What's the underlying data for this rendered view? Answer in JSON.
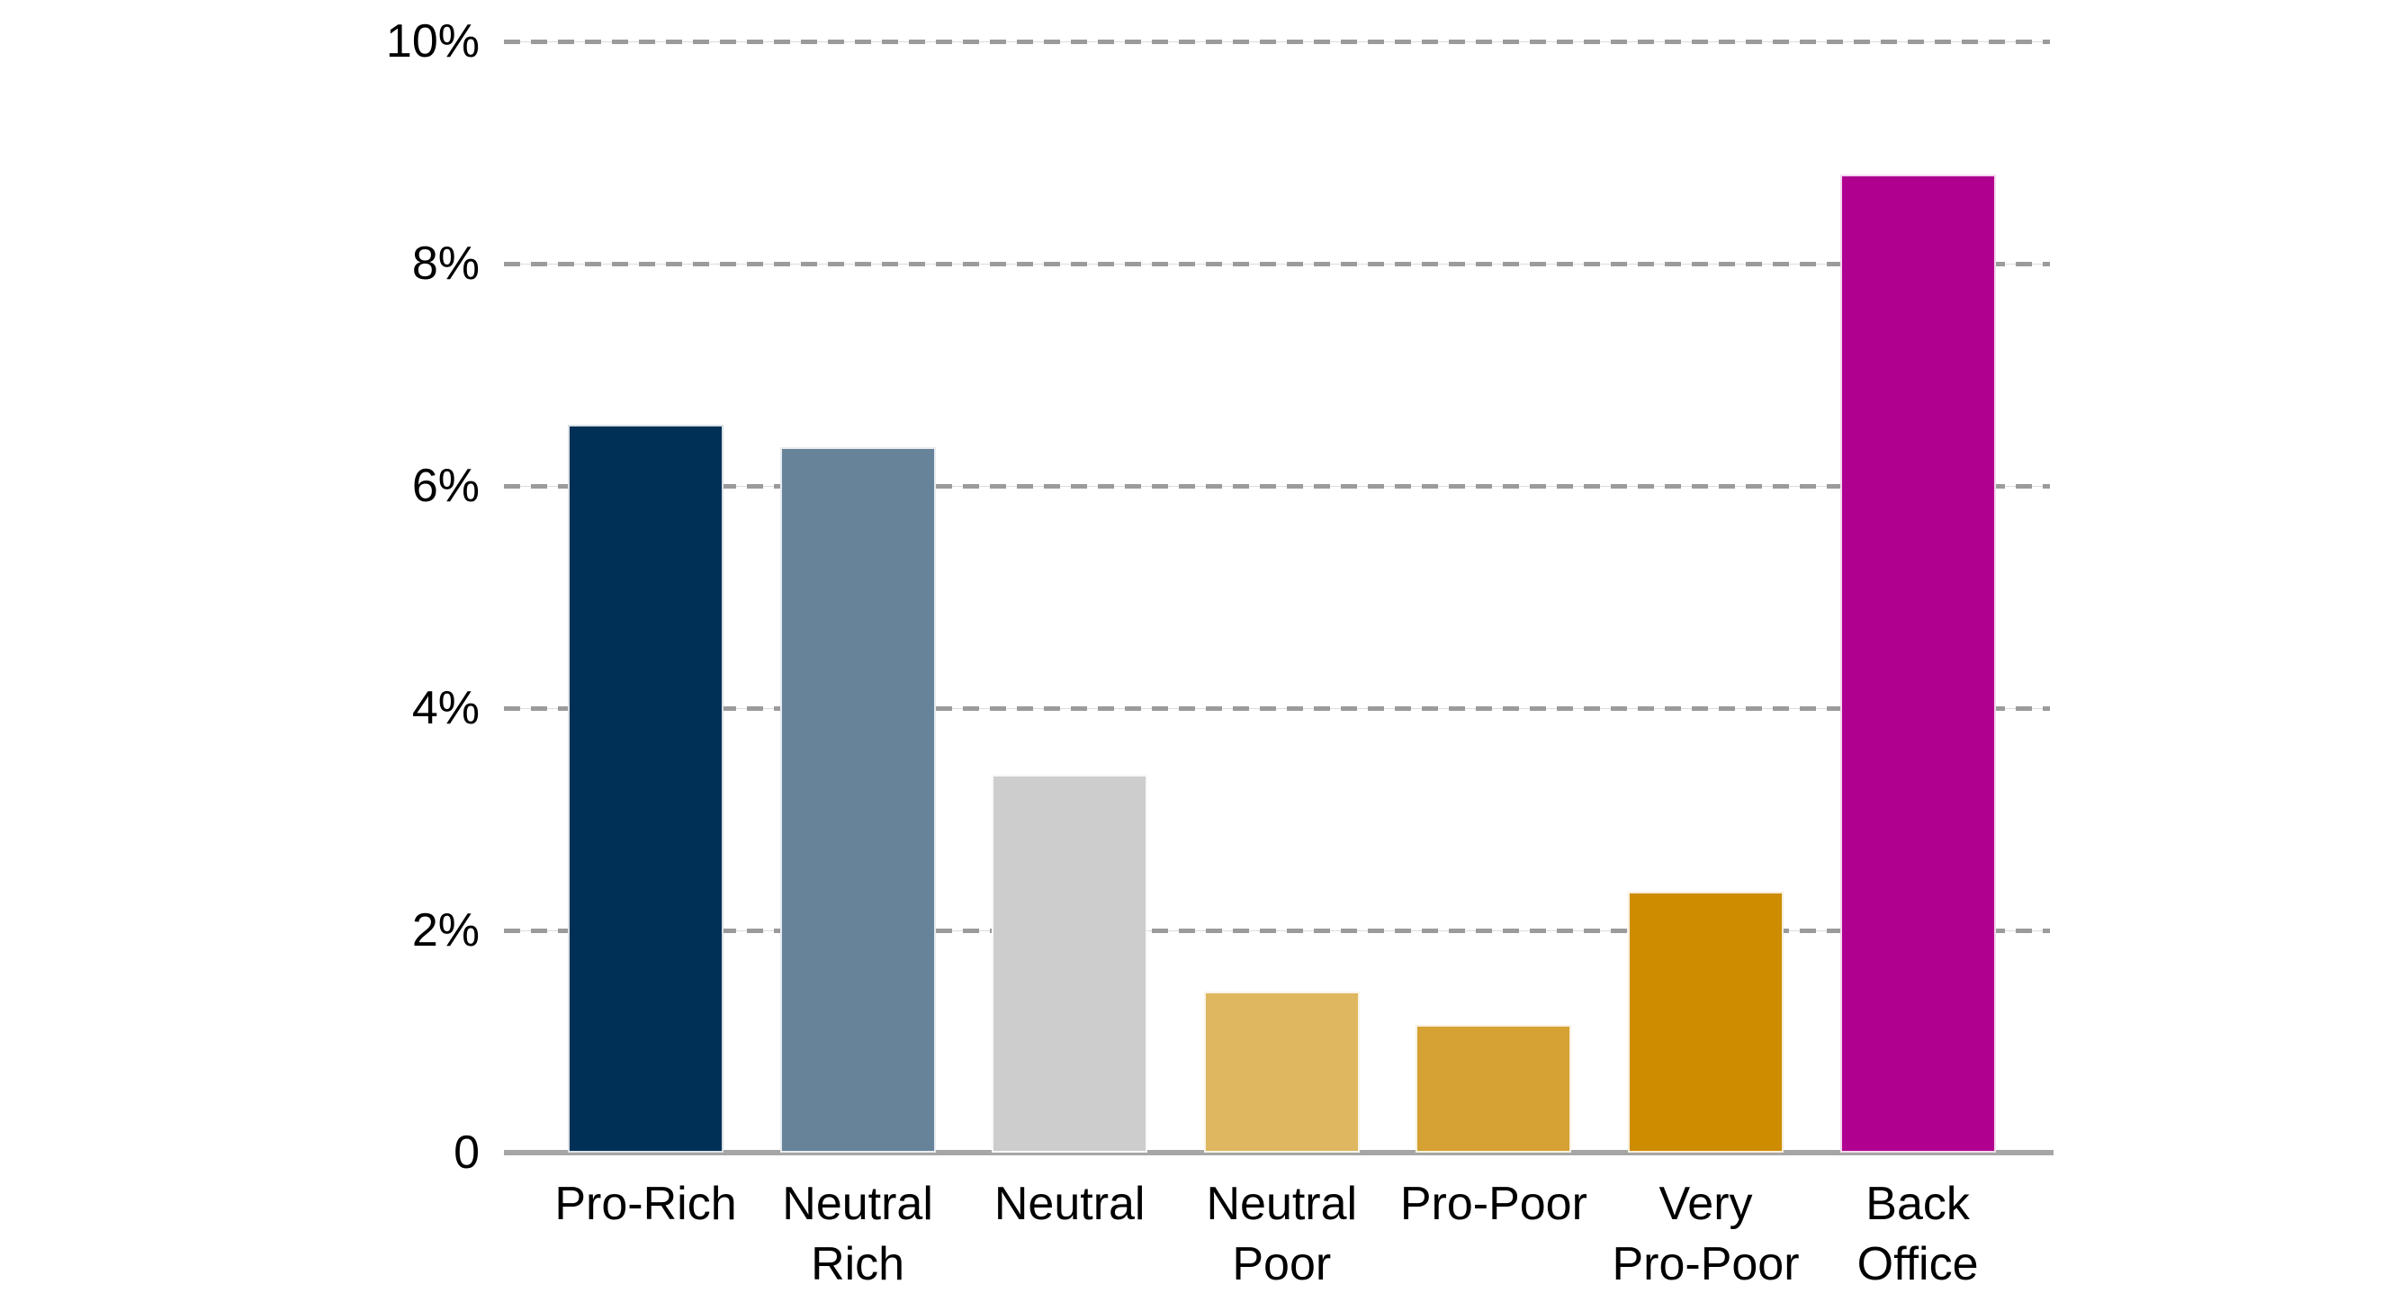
{
  "chart_data": {
    "type": "bar",
    "title": "",
    "xlabel": "",
    "ylabel": "",
    "categories": [
      "Pro-Rich",
      "Neutral Rich",
      "Neutral",
      "Neutral Poor",
      "Pro-Poor",
      "Very Pro-Poor",
      "Back Office"
    ],
    "category_label_lines": [
      [
        "Pro-Rich"
      ],
      [
        "Neutral",
        "Rich"
      ],
      [
        "Neutral"
      ],
      [
        "Neutral",
        "Poor"
      ],
      [
        "Pro-Poor"
      ],
      [
        "Very",
        "Pro-Poor"
      ],
      [
        "Back",
        "Office"
      ]
    ],
    "values": [
      6.55,
      6.35,
      3.4,
      1.45,
      1.15,
      2.35,
      8.8
    ],
    "unit": "%",
    "bar_colors": [
      "#003056",
      "#67839a",
      "#cdcdcd",
      "#deb760",
      "#d5a233",
      "#ce8c00",
      "#b00090"
    ],
    "ylim": [
      0,
      10
    ],
    "y_ticks": [
      {
        "value": 10,
        "label": "10%"
      },
      {
        "value": 8,
        "label": "8%"
      },
      {
        "value": 6,
        "label": "6%"
      },
      {
        "value": 4,
        "label": "4%"
      },
      {
        "value": 2,
        "label": "2%"
      },
      {
        "value": 0,
        "label": "0"
      }
    ],
    "grid": "horizontal dashed",
    "legend": "none",
    "gridline_color": "#9b9b9b",
    "axis_line_color": "#a6a6a6",
    "text_color": "#000000",
    "background": "#ffffff"
  }
}
